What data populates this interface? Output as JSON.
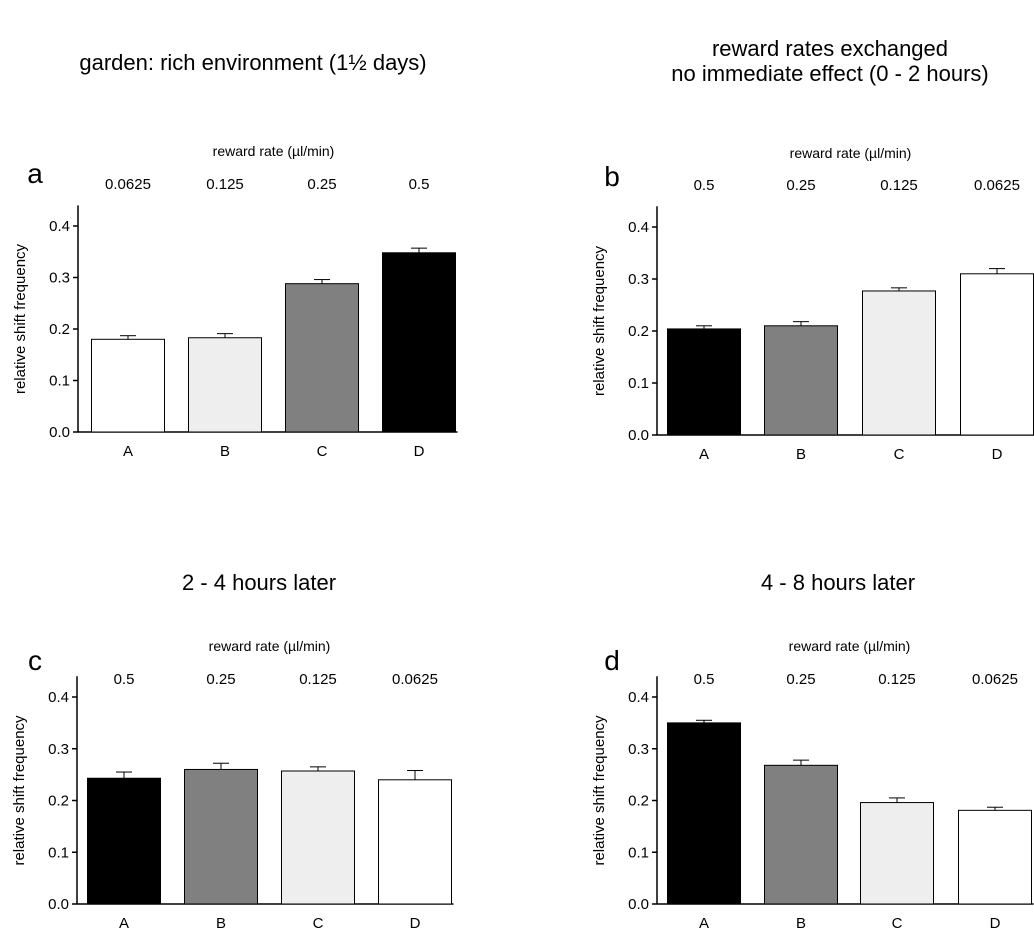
{
  "chart_data": [
    {
      "type": "bar",
      "panel": "a",
      "title": [
        "garden: rich environment (1½ days)"
      ],
      "top_axis_label": "reward rate (µl/min)",
      "top_ticks": [
        "0.0625",
        "0.125",
        "0.25",
        "0.5"
      ],
      "categories": [
        "A",
        "B",
        "C",
        "D"
      ],
      "values": [
        0.18,
        0.183,
        0.288,
        0.348
      ],
      "errors": [
        0.007,
        0.008,
        0.008,
        0.009
      ],
      "colors": [
        "#ffffff",
        "#eeeeee",
        "#808080",
        "#000000"
      ],
      "ylabel": "relative shift frequency",
      "yticks": [
        "0.0",
        "0.1",
        "0.2",
        "0.3",
        "0.4"
      ],
      "ylim": [
        0,
        0.44
      ]
    },
    {
      "type": "bar",
      "panel": "b",
      "title": [
        "reward rates exchanged",
        "no immediate effect (0 - 2 hours)"
      ],
      "top_axis_label": "reward rate (µl/min)",
      "top_ticks": [
        "0.5",
        "0.25",
        "0.125",
        "0.0625"
      ],
      "categories": [
        "A",
        "B",
        "C",
        "D"
      ],
      "values": [
        0.204,
        0.21,
        0.277,
        0.31
      ],
      "errors": [
        0.006,
        0.008,
        0.006,
        0.01
      ],
      "colors": [
        "#000000",
        "#808080",
        "#eeeeee",
        "#ffffff"
      ],
      "ylabel": "relative shift frequency",
      "yticks": [
        "0.0",
        "0.1",
        "0.2",
        "0.3",
        "0.4"
      ],
      "ylim": [
        0,
        0.44
      ]
    },
    {
      "type": "bar",
      "panel": "c",
      "title": [
        "2 - 4 hours later"
      ],
      "top_axis_label": "reward rate (µl/min)",
      "top_ticks": [
        "0.5",
        "0.25",
        "0.125",
        "0.0625"
      ],
      "categories": [
        "A",
        "B",
        "C",
        "D"
      ],
      "values": [
        0.243,
        0.26,
        0.257,
        0.24
      ],
      "errors": [
        0.012,
        0.012,
        0.008,
        0.018
      ],
      "colors": [
        "#000000",
        "#808080",
        "#eeeeee",
        "#ffffff"
      ],
      "ylabel": "relative shift frequency",
      "yticks": [
        "0.0",
        "0.1",
        "0.2",
        "0.3",
        "0.4"
      ],
      "ylim": [
        0,
        0.44
      ]
    },
    {
      "type": "bar",
      "panel": "d",
      "title": [
        "4 - 8 hours later"
      ],
      "top_axis_label": "reward rate (µl/min)",
      "top_ticks": [
        "0.5",
        "0.25",
        "0.125",
        "0.0625"
      ],
      "categories": [
        "A",
        "B",
        "C",
        "D"
      ],
      "values": [
        0.35,
        0.268,
        0.196,
        0.181
      ],
      "errors": [
        0.005,
        0.01,
        0.009,
        0.006
      ],
      "colors": [
        "#000000",
        "#808080",
        "#eeeeee",
        "#ffffff"
      ],
      "ylabel": "relative shift frequency",
      "yticks": [
        "0.0",
        "0.1",
        "0.2",
        "0.3",
        "0.4"
      ],
      "ylim": [
        0,
        0.44
      ]
    }
  ]
}
